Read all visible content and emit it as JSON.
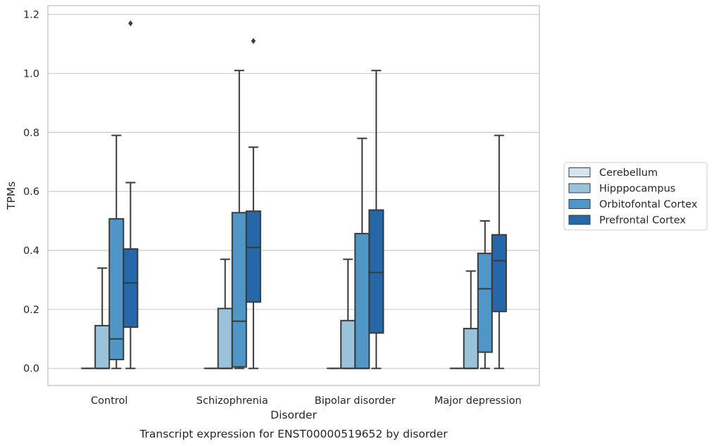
{
  "chart_data": {
    "type": "boxplot",
    "caption": "Transcript expression for ENST00000519652 by disorder",
    "xlabel": "Disorder",
    "ylabel": "TPMs",
    "ylim": [
      -0.058,
      1.23
    ],
    "yticks": [
      0.0,
      0.2,
      0.4,
      0.6,
      0.8,
      1.0,
      1.2
    ],
    "ytick_labels": [
      "0.0",
      "0.2",
      "0.4",
      "0.6",
      "0.8",
      "1.0",
      "1.2"
    ],
    "grid": true,
    "legend_position": "right",
    "categories": [
      "Control",
      "Schizophrenia",
      "Bipolar disorder",
      "Major depression"
    ],
    "series": [
      {
        "name": "Cerebellum",
        "color": "#d4e3f0",
        "boxes": [
          {
            "whislo": 0,
            "q1": 0,
            "med": 0,
            "q3": 0,
            "whishi": 0,
            "fliers": []
          },
          {
            "whislo": 0,
            "q1": 0,
            "med": 0,
            "q3": 0,
            "whishi": 0,
            "fliers": []
          },
          {
            "whislo": 0,
            "q1": 0,
            "med": 0,
            "q3": 0,
            "whishi": 0,
            "fliers": []
          },
          {
            "whislo": 0,
            "q1": 0,
            "med": 0,
            "q3": 0,
            "whishi": 0,
            "fliers": []
          }
        ]
      },
      {
        "name": "Hipppocampus",
        "color": "#9ac3db",
        "boxes": [
          {
            "whislo": 0,
            "q1": 0,
            "med": 0,
            "q3": 0.145,
            "whishi": 0.34,
            "fliers": []
          },
          {
            "whislo": 0,
            "q1": 0,
            "med": 0,
            "q3": 0.203,
            "whishi": 0.37,
            "fliers": []
          },
          {
            "whislo": 0,
            "q1": 0,
            "med": 0,
            "q3": 0.162,
            "whishi": 0.37,
            "fliers": []
          },
          {
            "whislo": 0,
            "q1": 0,
            "med": 0,
            "q3": 0.135,
            "whishi": 0.33,
            "fliers": []
          }
        ]
      },
      {
        "name": "Orbitofontal Cortex",
        "color": "#5097c7",
        "boxes": [
          {
            "whislo": 0,
            "q1": 0.03,
            "med": 0.1,
            "q3": 0.507,
            "whishi": 0.79,
            "fliers": []
          },
          {
            "whislo": 0,
            "q1": 0.005,
            "med": 0.16,
            "q3": 0.528,
            "whishi": 1.01,
            "fliers": []
          },
          {
            "whislo": 0,
            "q1": 0,
            "med": 0,
            "q3": 0.457,
            "whishi": 0.78,
            "fliers": []
          },
          {
            "whislo": 0,
            "q1": 0.055,
            "med": 0.27,
            "q3": 0.39,
            "whishi": 0.5,
            "fliers": []
          }
        ]
      },
      {
        "name": "Prefrontal Cortex",
        "color": "#2567a8",
        "boxes": [
          {
            "whislo": 0,
            "q1": 0.14,
            "med": 0.29,
            "q3": 0.405,
            "whishi": 0.63,
            "fliers": [
              1.17
            ]
          },
          {
            "whislo": 0,
            "q1": 0.225,
            "med": 0.41,
            "q3": 0.533,
            "whishi": 0.75,
            "fliers": [
              1.11
            ]
          },
          {
            "whislo": 0,
            "q1": 0.12,
            "med": 0.325,
            "q3": 0.537,
            "whishi": 1.01,
            "fliers": []
          },
          {
            "whislo": 0,
            "q1": 0.193,
            "med": 0.365,
            "q3": 0.453,
            "whishi": 0.79,
            "fliers": []
          }
        ]
      }
    ]
  }
}
